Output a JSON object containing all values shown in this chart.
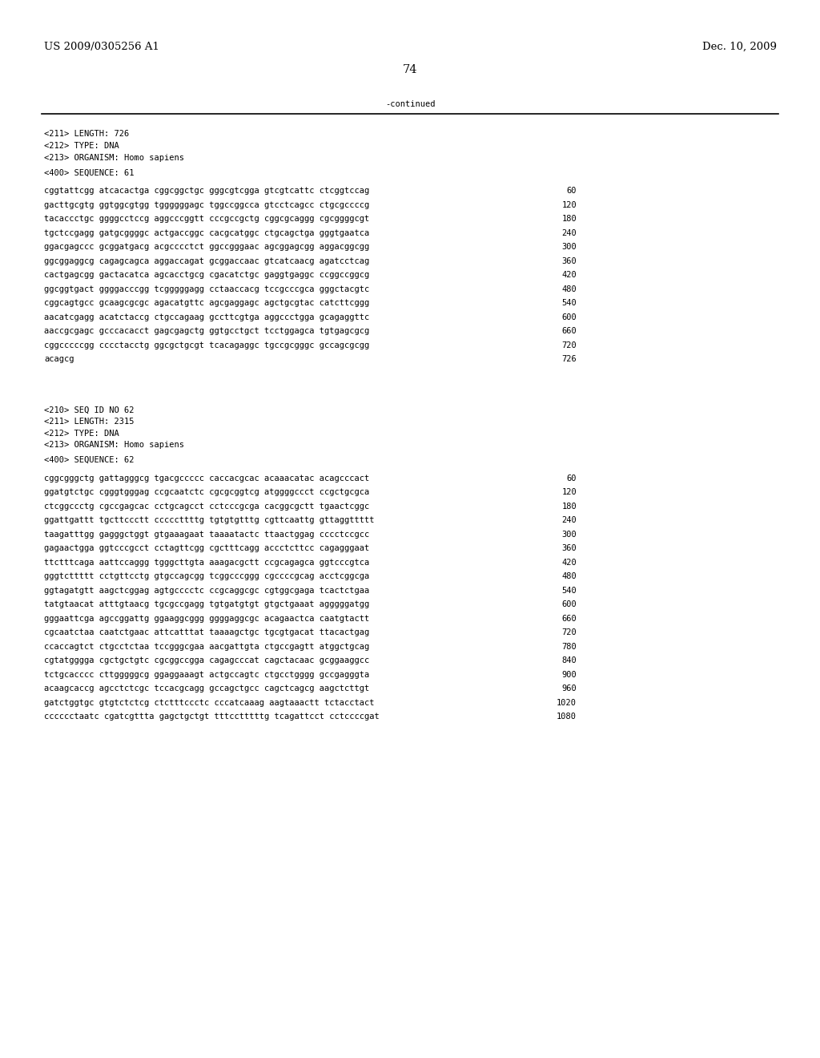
{
  "header_left": "US 2009/0305256 A1",
  "header_right": "Dec. 10, 2009",
  "page_number": "74",
  "continued_text": "-continued",
  "background_color": "#ffffff",
  "text_color": "#000000",
  "font_size_header": 9.5,
  "font_size_body": 7.5,
  "font_size_page": 10.5,
  "seq61_meta": [
    "<211> LENGTH: 726",
    "<212> TYPE: DNA",
    "<213> ORGANISM: Homo sapiens"
  ],
  "seq61_label": "<400> SEQUENCE: 61",
  "seq61_lines": [
    [
      "cggtattcgg atcacactga cggcggctgc gggcgtcgga gtcgtcattc ctcggtccag",
      "60"
    ],
    [
      "gacttgcgtg ggtggcgtgg tggggggagc tggccggcca gtcctcagcc ctgcgccccg",
      "120"
    ],
    [
      "tacaccctgc ggggcctccg aggcccggtt cccgccgctg cggcgcaggg cgcggggcgt",
      "180"
    ],
    [
      "tgctccgagg gatgcggggc actgaccggc cacgcatggc ctgcagctga gggtgaatca",
      "240"
    ],
    [
      "ggacgagccc gcggatgacg acgcccctct ggccgggaac agcggagcgg aggacggcgg",
      "300"
    ],
    [
      "ggcggaggcg cagagcagca aggaccagat gcggaccaac gtcatcaacg agatcctcag",
      "360"
    ],
    [
      "cactgagcgg gactacatca agcacctgcg cgacatctgc gaggtgaggc ccggccggcg",
      "420"
    ],
    [
      "ggcggtgact ggggacccgg tcgggggagg cctaaccacg tccgcccgca gggctacgtc",
      "480"
    ],
    [
      "cggcagtgcc gcaagcgcgc agacatgttc agcgaggagc agctgcgtac catcttcggg",
      "540"
    ],
    [
      "aacatcgagg acatctaccg ctgccagaag gccttcgtga aggccctgga gcagaggttc",
      "600"
    ],
    [
      "aaccgcgagc gcccacacct gagcgagctg ggtgcctgct tcctggagca tgtgagcgcg",
      "660"
    ],
    [
      "cggcccccgg cccctacctg ggcgctgcgt tcacagaggc tgccgcgggc gccagcgcgg",
      "720"
    ],
    [
      "acagcg",
      "726"
    ]
  ],
  "seq62_meta": [
    "<210> SEQ ID NO 62",
    "<211> LENGTH: 2315",
    "<212> TYPE: DNA",
    "<213> ORGANISM: Homo sapiens"
  ],
  "seq62_label": "<400> SEQUENCE: 62",
  "seq62_lines": [
    [
      "cggcgggctg gattagggcg tgacgccccc caccacgcac acaaacatac acagcccact",
      "60"
    ],
    [
      "ggatgtctgc cgggtgggag ccgcaatctc cgcgcggtcg atggggccct ccgctgcgca",
      "120"
    ],
    [
      "ctcggccctg cgccgagcac cctgcagcct cctcccgcga cacggcgctt tgaactcggc",
      "180"
    ],
    [
      "ggattgattt tgcttccctt cccccttttg tgtgtgtttg cgttcaattg gttaggttttt",
      "240"
    ],
    [
      "taagatttgg gagggctggt gtgaaagaat taaaatactc ttaactggag cccctccgcc",
      "300"
    ],
    [
      "gagaactgga ggtcccgcct cctagttcgg cgctttcagg accctcttcc cagagggaat",
      "360"
    ],
    [
      "ttctttcaga aattccaggg tgggcttgta aaagacgctt ccgcagagca ggtcccgtca",
      "420"
    ],
    [
      "gggtcttttt cctgttcctg gtgccagcgg tcggcccggg cgccccgcag acctcggcga",
      "480"
    ],
    [
      "ggtagatgtt aagctcggag agtgcccctc ccgcaggcgc cgtggcgaga tcactctgaa",
      "540"
    ],
    [
      "tatgtaacat atttgtaacg tgcgccgagg tgtgatgtgt gtgctgaaat agggggatgg",
      "600"
    ],
    [
      "gggaattcga agccggattg ggaaggcggg ggggaggcgc acagaactca caatgtactt",
      "660"
    ],
    [
      "cgcaatctaa caatctgaac attcatttat taaaagctgc tgcgtgacat ttacactgag",
      "720"
    ],
    [
      "ccaccagtct ctgcctctaa tccgggcgaa aacgattgta ctgccgagtt atggctgcag",
      "780"
    ],
    [
      "cgtatgggga cgctgctgtc cgcggccgga cagagcccat cagctacaac gcggaaggcc",
      "840"
    ],
    [
      "tctgcacccc cttgggggcg ggaggaaagt actgccagtc ctgcctgggg gccgagggta",
      "900"
    ],
    [
      "acaagcaccg agcctctcgc tccacgcagg gccagctgcc cagctcagcg aagctcttgt",
      "960"
    ],
    [
      "gatctggtgc gtgtctctcg ctctttccctc cccatcaaag aagtaaactt tctacctact",
      "1020"
    ],
    [
      "cccccctaatc cgatcgttta gagctgctgt tttcctttttg tcagattcct cctccccgat",
      "1080"
    ]
  ]
}
